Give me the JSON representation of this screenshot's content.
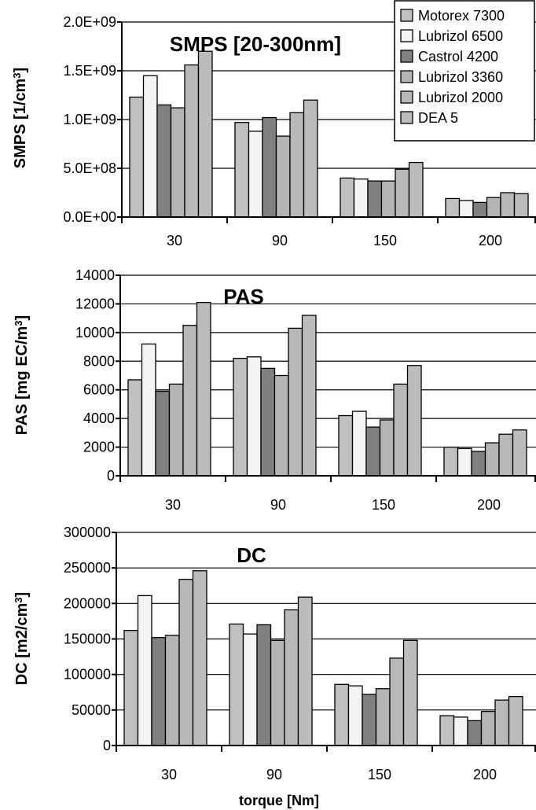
{
  "xlabel": "torque [Nm]",
  "legend": {
    "placement": "top-right of first panel",
    "entries": [
      "Motorex 7300",
      "Lubrizol 6500",
      "Castrol 4200",
      "Lubrizol 3360",
      "Lubrizol 2000",
      "DEA 5"
    ]
  },
  "colors": {
    "Motorex 7300": "#c0c0c0",
    "Lubrizol 6500": "#f4f4f4",
    "Castrol 4200": "#808080",
    "Lubrizol 3360": "#b4b4b4",
    "Lubrizol 2000": "#b8b8b8",
    "DEA 5": "#bcbcbc"
  },
  "chart_data": [
    {
      "type": "bar",
      "title": "SMPS [20-300nm]",
      "ylabel": "SMPS [1/cm³]",
      "categories": [
        "30",
        "90",
        "150",
        "200"
      ],
      "ylim": [
        0,
        2000000000
      ],
      "yticks": [
        0,
        500000000,
        1000000000,
        1500000000,
        2000000000
      ],
      "ytick_labels": [
        "0.0E+00",
        "5.0E+08",
        "1.0E+09",
        "1.5E+09",
        "2.0E+09"
      ],
      "grid": true,
      "series": [
        {
          "name": "Motorex 7300",
          "values": [
            1230000000,
            970000000,
            400000000,
            190000000
          ]
        },
        {
          "name": "Lubrizol 6500",
          "values": [
            1450000000,
            880000000,
            390000000,
            170000000
          ]
        },
        {
          "name": "Castrol 4200",
          "values": [
            1150000000,
            1020000000,
            370000000,
            150000000
          ]
        },
        {
          "name": "Lubrizol 3360",
          "values": [
            1120000000,
            830000000,
            370000000,
            200000000
          ]
        },
        {
          "name": "Lubrizol 2000",
          "values": [
            1560000000,
            1070000000,
            490000000,
            250000000
          ]
        },
        {
          "name": "DEA 5",
          "values": [
            1700000000,
            1200000000,
            560000000,
            240000000
          ]
        }
      ]
    },
    {
      "type": "bar",
      "title": "PAS",
      "ylabel": "PAS [mg EC/m³]",
      "categories": [
        "30",
        "90",
        "150",
        "200"
      ],
      "ylim": [
        0,
        14000
      ],
      "yticks": [
        0,
        2000,
        4000,
        6000,
        8000,
        10000,
        12000,
        14000
      ],
      "ytick_labels": [
        "0",
        "2000",
        "4000",
        "6000",
        "8000",
        "10000",
        "12000",
        "14000"
      ],
      "grid": true,
      "series": [
        {
          "name": "Motorex 7300",
          "values": [
            6700,
            8200,
            4200,
            2000
          ]
        },
        {
          "name": "Lubrizol 6500",
          "values": [
            9200,
            8300,
            4500,
            1900
          ]
        },
        {
          "name": "Castrol 4200",
          "values": [
            5900,
            7500,
            3400,
            1700
          ]
        },
        {
          "name": "Lubrizol 3360",
          "values": [
            6400,
            7000,
            3900,
            2300
          ]
        },
        {
          "name": "Lubrizol 2000",
          "values": [
            10500,
            10300,
            6400,
            2900
          ]
        },
        {
          "name": "DEA 5",
          "values": [
            12100,
            11200,
            7700,
            3200
          ]
        }
      ]
    },
    {
      "type": "bar",
      "title": "DC",
      "ylabel": "DC [m2/cm³]",
      "categories": [
        "30",
        "90",
        "150",
        "200"
      ],
      "ylim": [
        0,
        300000
      ],
      "yticks": [
        0,
        50000,
        100000,
        150000,
        200000,
        250000,
        300000
      ],
      "ytick_labels": [
        "0",
        "50000",
        "100000",
        "150000",
        "200000",
        "250000",
        "300000"
      ],
      "grid": true,
      "series": [
        {
          "name": "Motorex 7300",
          "values": [
            162000,
            171000,
            86000,
            42000
          ]
        },
        {
          "name": "Lubrizol 6500",
          "values": [
            211000,
            157000,
            84000,
            40000
          ]
        },
        {
          "name": "Castrol 4200",
          "values": [
            152000,
            170000,
            72000,
            35000
          ]
        },
        {
          "name": "Lubrizol 3360",
          "values": [
            155000,
            148000,
            80000,
            48000
          ]
        },
        {
          "name": "Lubrizol 2000",
          "values": [
            234000,
            191000,
            123000,
            64000
          ]
        },
        {
          "name": "DEA 5",
          "values": [
            246000,
            209000,
            148000,
            69000
          ]
        }
      ]
    }
  ]
}
